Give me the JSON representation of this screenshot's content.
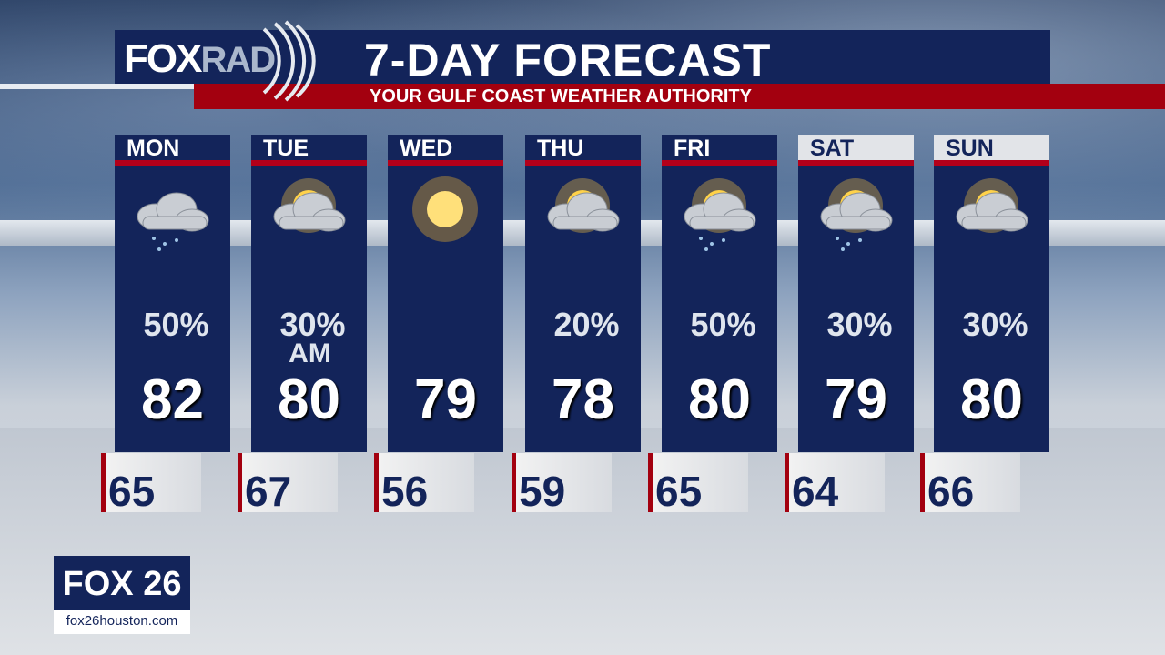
{
  "header": {
    "logo_fox": "FOX",
    "logo_rad": "RAD",
    "title": "7-DAY FORECAST",
    "subtitle": "YOUR GULF COAST WEATHER AUTHORITY"
  },
  "days": [
    {
      "day": "MON",
      "icon": "cloud-rain",
      "precip": "50%",
      "note": "",
      "high": "82",
      "low": "65",
      "weekend": false
    },
    {
      "day": "TUE",
      "icon": "sun-behind-cloud",
      "precip": "30%",
      "note": "AM",
      "high": "80",
      "low": "67",
      "weekend": false
    },
    {
      "day": "WED",
      "icon": "sunny",
      "precip": "",
      "note": "",
      "high": "79",
      "low": "56",
      "weekend": false
    },
    {
      "day": "THU",
      "icon": "sun-behind-cloud",
      "precip": "20%",
      "note": "",
      "high": "78",
      "low": "59",
      "weekend": false
    },
    {
      "day": "FRI",
      "icon": "sun-cloud-storm",
      "precip": "50%",
      "note": "",
      "high": "80",
      "low": "65",
      "weekend": false
    },
    {
      "day": "SAT",
      "icon": "sun-cloud-rain",
      "precip": "30%",
      "note": "",
      "high": "79",
      "low": "64",
      "weekend": true
    },
    {
      "day": "SUN",
      "icon": "sun-behind-cloud",
      "precip": "30%",
      "note": "",
      "high": "80",
      "low": "66",
      "weekend": true
    }
  ],
  "station": {
    "logo": "FOX 26",
    "url": "fox26houston.com"
  },
  "colors": {
    "navy": "#13245a",
    "red": "#a3000f"
  }
}
